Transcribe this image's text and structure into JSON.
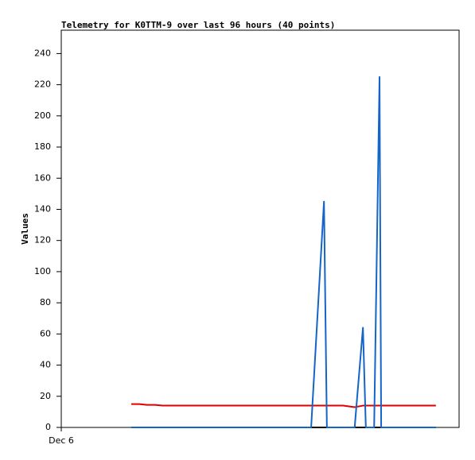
{
  "chart_data": {
    "type": "line",
    "title": "Telemetry for K0TTM-9 over last 96 hours (40 points)",
    "y_label": "Values",
    "x": [
      16.9,
      18.8,
      20.7,
      22.6,
      24.4,
      26.3,
      28.2,
      30.1,
      32.0,
      33.9,
      35.8,
      37.6,
      39.5,
      41.4,
      43.3,
      45.2,
      47.0,
      48.9,
      50.8,
      52.7,
      54.6,
      56.5,
      58.4,
      60.3,
      63.4,
      64.1,
      66.0,
      68.0,
      70.8,
      72.8,
      73.5,
      75.5,
      76.8,
      77.2,
      79.3,
      80.6,
      83.1,
      85.4,
      87.9,
      90.4
    ],
    "series": [
      {
        "color": "#000000",
        "values": [
          0,
          0,
          0,
          0,
          0,
          0,
          0,
          0,
          0,
          0,
          0,
          0,
          0,
          0,
          0,
          0,
          0,
          0,
          0,
          0,
          0,
          0,
          0,
          0,
          0,
          0,
          0,
          0,
          0,
          0,
          0,
          0,
          0,
          0,
          0,
          0,
          0,
          0,
          0,
          0
        ]
      },
      {
        "color": "#e00000",
        "values": [
          15,
          15,
          14.5,
          14.5,
          14,
          14,
          14,
          14,
          14,
          14,
          14,
          14,
          14,
          14,
          14,
          14,
          14,
          14,
          14,
          14,
          14,
          14,
          14,
          14,
          14,
          14,
          14,
          14,
          13,
          14,
          14,
          14,
          14,
          14,
          14,
          14,
          14,
          14,
          14,
          14
        ]
      },
      {
        "color": "#1565c8",
        "values": [
          0,
          0,
          0,
          0,
          0,
          0,
          0,
          0,
          0,
          0,
          0,
          0,
          0,
          0,
          0,
          0,
          0,
          0,
          0,
          0,
          0,
          0,
          0,
          0,
          145,
          0,
          0,
          0,
          0,
          64,
          0,
          0,
          225,
          0,
          0,
          0,
          0,
          0,
          0,
          0
        ]
      }
    ],
    "xlim": [
      0,
      96
    ],
    "xticks": [
      {
        "value": 0,
        "label": "Dec 6"
      }
    ],
    "ylim": [
      0,
      255
    ],
    "yticks": [
      0,
      20,
      40,
      60,
      80,
      100,
      120,
      140,
      160,
      180,
      200,
      220,
      240
    ],
    "grid": false
  }
}
